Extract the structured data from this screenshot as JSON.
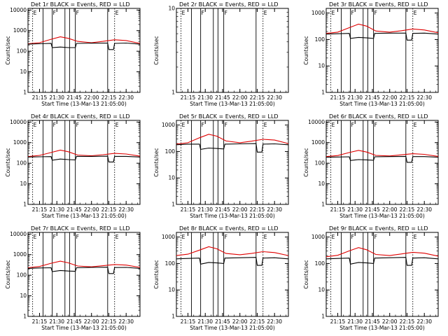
{
  "figure": {
    "ylabel": "Counts/sec",
    "xlabel": "Start Time (13-Mar-13 21:05:00)"
  },
  "chart_data": [
    {
      "type": "line",
      "title": "Det 1r BLACK = Events, RED = LLD",
      "xticks": [
        "21:15",
        "21:30",
        "21:45",
        "22:00",
        "22:15",
        "22:30"
      ],
      "yticks": [
        "1",
        "10",
        "100",
        "1000",
        "10000"
      ],
      "ylim": [
        1,
        12000
      ],
      "ylog": true,
      "xlim": [
        "21:05",
        "22:42"
      ],
      "markers": [
        {
          "time": "21:09",
          "label": "E"
        },
        {
          "time": "21:18",
          "label": ""
        },
        {
          "time": "21:26",
          "label": "F"
        },
        {
          "time": "21:37",
          "label": ""
        },
        {
          "time": "21:41",
          "label": ""
        },
        {
          "time": "21:46",
          "label": "F"
        },
        {
          "time": "22:14",
          "label": ""
        },
        {
          "time": "22:20",
          "label": "E"
        }
      ],
      "series": [
        {
          "name": "RED = LLD",
          "color": "#e00000",
          "x": [
            "21:05",
            "21:15",
            "21:25",
            "21:33",
            "21:40",
            "21:48",
            "22:00",
            "22:10",
            "22:20",
            "22:30",
            "22:42"
          ],
          "y": [
            230,
            260,
            380,
            500,
            420,
            300,
            260,
            300,
            360,
            330,
            240
          ]
        },
        {
          "name": "BLACK = Events",
          "color": "#000000",
          "x": [
            "21:05",
            "21:15",
            "21:25",
            "21:26",
            "21:33",
            "21:40",
            "21:46",
            "21:47",
            "22:00",
            "22:14",
            "22:15",
            "22:19",
            "22:20",
            "22:30",
            "22:42"
          ],
          "y": [
            220,
            230,
            240,
            150,
            160,
            150,
            150,
            240,
            245,
            250,
            120,
            120,
            240,
            250,
            220
          ]
        }
      ]
    },
    {
      "type": "line",
      "title": "Det 2r BLACK = Events, RED = LLD",
      "xticks": [
        "21:15",
        "21:30",
        "21:45",
        "22:00",
        "22:15",
        "22:30"
      ],
      "yticks": [
        "1",
        "10"
      ],
      "ylim": [
        1,
        10
      ],
      "ylog": true,
      "xlim": [
        "21:05",
        "22:42"
      ],
      "markers": [
        {
          "time": "21:09",
          "label": "E"
        },
        {
          "time": "21:18",
          "label": ""
        },
        {
          "time": "21:26",
          "label": "F"
        },
        {
          "time": "21:37",
          "label": ""
        },
        {
          "time": "21:41",
          "label": ""
        },
        {
          "time": "21:46",
          "label": "F"
        },
        {
          "time": "22:14",
          "label": ""
        },
        {
          "time": "22:20",
          "label": "E"
        }
      ],
      "series": []
    },
    {
      "type": "line",
      "title": "Det 3r BLACK = Events, RED = LLD",
      "xticks": [
        "21:15",
        "21:30",
        "21:45",
        "22:00",
        "22:15",
        "22:30"
      ],
      "yticks": [
        "1",
        "10",
        "100",
        "1000"
      ],
      "ylim": [
        1,
        1500
      ],
      "ylog": true,
      "xlim": [
        "21:05",
        "22:42"
      ],
      "markers": [
        {
          "time": "21:09",
          "label": "E"
        },
        {
          "time": "21:18",
          "label": ""
        },
        {
          "time": "21:26",
          "label": "F"
        },
        {
          "time": "21:37",
          "label": ""
        },
        {
          "time": "21:41",
          "label": ""
        },
        {
          "time": "21:46",
          "label": "F"
        },
        {
          "time": "22:14",
          "label": ""
        },
        {
          "time": "22:20",
          "label": "E"
        }
      ],
      "series": [
        {
          "name": "RED = LLD",
          "color": "#e00000",
          "x": [
            "21:05",
            "21:15",
            "21:25",
            "21:33",
            "21:40",
            "21:48",
            "22:00",
            "22:10",
            "22:20",
            "22:30",
            "22:42"
          ],
          "y": [
            170,
            190,
            280,
            380,
            320,
            210,
            190,
            215,
            250,
            230,
            180
          ]
        },
        {
          "name": "BLACK = Events",
          "color": "#000000",
          "x": [
            "21:05",
            "21:15",
            "21:25",
            "21:26",
            "21:33",
            "21:40",
            "21:46",
            "21:47",
            "22:00",
            "22:14",
            "22:15",
            "22:19",
            "22:20",
            "22:30",
            "22:42"
          ],
          "y": [
            160,
            165,
            170,
            110,
            120,
            115,
            110,
            170,
            175,
            175,
            95,
            95,
            170,
            175,
            160
          ]
        }
      ]
    },
    {
      "type": "line",
      "title": "Det 4r BLACK = Events, RED = LLD",
      "xticks": [
        "21:15",
        "21:30",
        "21:45",
        "22:00",
        "22:15",
        "22:30"
      ],
      "yticks": [
        "1",
        "10",
        "100",
        "1000",
        "10000"
      ],
      "ylim": [
        1,
        12000
      ],
      "ylog": true,
      "xlim": [
        "21:05",
        "22:42"
      ],
      "markers": [
        {
          "time": "21:09",
          "label": "E"
        },
        {
          "time": "21:18",
          "label": ""
        },
        {
          "time": "21:26",
          "label": "F"
        },
        {
          "time": "21:37",
          "label": ""
        },
        {
          "time": "21:41",
          "label": ""
        },
        {
          "time": "21:46",
          "label": "F"
        },
        {
          "time": "22:14",
          "label": ""
        },
        {
          "time": "22:20",
          "label": "E"
        }
      ],
      "series": [
        {
          "name": "RED = LLD",
          "color": "#e00000",
          "x": [
            "21:05",
            "21:15",
            "21:25",
            "21:33",
            "21:40",
            "21:48",
            "22:00",
            "22:10",
            "22:20",
            "22:30",
            "22:42"
          ],
          "y": [
            210,
            240,
            330,
            430,
            360,
            250,
            230,
            260,
            300,
            280,
            220
          ]
        },
        {
          "name": "BLACK = Events",
          "color": "#000000",
          "x": [
            "21:05",
            "21:15",
            "21:25",
            "21:26",
            "21:33",
            "21:40",
            "21:46",
            "21:47",
            "22:00",
            "22:14",
            "22:15",
            "22:19",
            "22:20",
            "22:30",
            "22:42"
          ],
          "y": [
            200,
            205,
            210,
            140,
            160,
            150,
            145,
            215,
            215,
            220,
            115,
            115,
            215,
            215,
            200
          ]
        }
      ]
    },
    {
      "type": "line",
      "title": "Det 5r BLACK = Events, RED = LLD",
      "xticks": [
        "21:15",
        "21:30",
        "21:45",
        "22:00",
        "22:15",
        "22:30"
      ],
      "yticks": [
        "1",
        "10",
        "100",
        "1000"
      ],
      "ylim": [
        1,
        1500
      ],
      "ylog": true,
      "xlim": [
        "21:05",
        "22:42"
      ],
      "markers": [
        {
          "time": "21:09",
          "label": "E"
        },
        {
          "time": "21:18",
          "label": ""
        },
        {
          "time": "21:26",
          "label": "F"
        },
        {
          "time": "21:37",
          "label": ""
        },
        {
          "time": "21:41",
          "label": ""
        },
        {
          "time": "21:46",
          "label": "F"
        },
        {
          "time": "22:14",
          "label": ""
        },
        {
          "time": "22:20",
          "label": "E"
        }
      ],
      "series": [
        {
          "name": "RED = LLD",
          "color": "#e00000",
          "x": [
            "21:05",
            "21:15",
            "21:25",
            "21:33",
            "21:40",
            "21:48",
            "22:00",
            "22:10",
            "22:20",
            "22:30",
            "22:42"
          ],
          "y": [
            190,
            215,
            330,
            450,
            380,
            250,
            215,
            245,
            290,
            270,
            200
          ]
        },
        {
          "name": "BLACK = Events",
          "color": "#000000",
          "x": [
            "21:05",
            "21:15",
            "21:25",
            "21:26",
            "21:33",
            "21:40",
            "21:46",
            "21:47",
            "22:00",
            "22:14",
            "22:15",
            "22:19",
            "22:20",
            "22:30",
            "22:42"
          ],
          "y": [
            180,
            190,
            190,
            120,
            135,
            130,
            125,
            190,
            195,
            200,
            95,
            95,
            190,
            195,
            180
          ]
        }
      ]
    },
    {
      "type": "line",
      "title": "Det 6r BLACK = Events, RED = LLD",
      "xticks": [
        "21:15",
        "21:30",
        "21:45",
        "22:00",
        "22:15",
        "22:30"
      ],
      "yticks": [
        "1",
        "10",
        "100",
        "1000",
        "10000"
      ],
      "ylim": [
        1,
        12000
      ],
      "ylog": true,
      "xlim": [
        "21:05",
        "22:42"
      ],
      "markers": [
        {
          "time": "21:09",
          "label": "E"
        },
        {
          "time": "21:18",
          "label": ""
        },
        {
          "time": "21:26",
          "label": "F"
        },
        {
          "time": "21:37",
          "label": ""
        },
        {
          "time": "21:41",
          "label": ""
        },
        {
          "time": "21:46",
          "label": "F"
        },
        {
          "time": "22:14",
          "label": ""
        },
        {
          "time": "22:20",
          "label": "E"
        }
      ],
      "series": [
        {
          "name": "RED = LLD",
          "color": "#e00000",
          "x": [
            "21:05",
            "21:15",
            "21:25",
            "21:33",
            "21:40",
            "21:48",
            "22:00",
            "22:10",
            "22:20",
            "22:30",
            "22:42"
          ],
          "y": [
            210,
            235,
            330,
            420,
            350,
            240,
            225,
            255,
            290,
            270,
            215
          ]
        },
        {
          "name": "BLACK = Events",
          "color": "#000000",
          "x": [
            "21:05",
            "21:15",
            "21:25",
            "21:26",
            "21:33",
            "21:40",
            "21:46",
            "21:47",
            "22:00",
            "22:14",
            "22:15",
            "22:19",
            "22:20",
            "22:30",
            "22:42"
          ],
          "y": [
            195,
            200,
            205,
            135,
            150,
            145,
            140,
            205,
            210,
            215,
            110,
            110,
            210,
            210,
            195
          ]
        }
      ]
    },
    {
      "type": "line",
      "title": "Det 7r BLACK = Events, RED = LLD",
      "xticks": [
        "21:15",
        "21:30",
        "21:45",
        "22:00",
        "22:15",
        "22:30"
      ],
      "yticks": [
        "1",
        "10",
        "100",
        "1000",
        "10000"
      ],
      "ylim": [
        1,
        12000
      ],
      "ylog": true,
      "xlim": [
        "21:05",
        "22:42"
      ],
      "markers": [
        {
          "time": "21:09",
          "label": "E"
        },
        {
          "time": "21:18",
          "label": ""
        },
        {
          "time": "21:26",
          "label": "F"
        },
        {
          "time": "21:37",
          "label": ""
        },
        {
          "time": "21:41",
          "label": ""
        },
        {
          "time": "21:46",
          "label": "F"
        },
        {
          "time": "22:14",
          "label": ""
        },
        {
          "time": "22:20",
          "label": "E"
        }
      ],
      "series": [
        {
          "name": "RED = LLD",
          "color": "#e00000",
          "x": [
            "21:05",
            "21:15",
            "21:25",
            "21:33",
            "21:40",
            "21:48",
            "22:00",
            "22:10",
            "22:20",
            "22:30",
            "22:42"
          ],
          "y": [
            230,
            265,
            380,
            480,
            400,
            280,
            255,
            290,
            330,
            310,
            240
          ]
        },
        {
          "name": "BLACK = Events",
          "color": "#000000",
          "x": [
            "21:05",
            "21:15",
            "21:25",
            "21:26",
            "21:33",
            "21:40",
            "21:46",
            "21:47",
            "22:00",
            "22:14",
            "22:15",
            "22:19",
            "22:20",
            "22:30",
            "22:42"
          ],
          "y": [
            215,
            225,
            230,
            150,
            170,
            160,
            155,
            230,
            240,
            245,
            120,
            120,
            235,
            240,
            215
          ]
        }
      ]
    },
    {
      "type": "line",
      "title": "Det 8r BLACK = Events, RED = LLD",
      "xticks": [
        "21:15",
        "21:30",
        "21:45",
        "22:00",
        "22:15",
        "22:30"
      ],
      "yticks": [
        "1",
        "10",
        "100",
        "1000"
      ],
      "ylim": [
        1,
        1500
      ],
      "ylog": true,
      "xlim": [
        "21:05",
        "22:42"
      ],
      "markers": [
        {
          "time": "21:09",
          "label": "E"
        },
        {
          "time": "21:18",
          "label": ""
        },
        {
          "time": "21:26",
          "label": "F"
        },
        {
          "time": "21:37",
          "label": ""
        },
        {
          "time": "21:41",
          "label": ""
        },
        {
          "time": "21:46",
          "label": "F"
        },
        {
          "time": "22:14",
          "label": ""
        },
        {
          "time": "22:20",
          "label": "E"
        }
      ],
      "series": [
        {
          "name": "RED = LLD",
          "color": "#e00000",
          "x": [
            "21:05",
            "21:15",
            "21:25",
            "21:33",
            "21:40",
            "21:48",
            "22:00",
            "22:10",
            "22:20",
            "22:30",
            "22:42"
          ],
          "y": [
            200,
            225,
            320,
            430,
            360,
            240,
            215,
            240,
            280,
            260,
            200
          ]
        },
        {
          "name": "BLACK = Events",
          "color": "#000000",
          "x": [
            "21:05",
            "21:15",
            "21:25",
            "21:26",
            "21:33",
            "21:40",
            "21:46",
            "21:47",
            "22:00",
            "22:14",
            "22:15",
            "22:19",
            "22:20",
            "22:30",
            "22:42"
          ],
          "y": [
            150,
            155,
            160,
            95,
            110,
            105,
            100,
            160,
            165,
            170,
            85,
            85,
            160,
            165,
            150
          ]
        }
      ]
    },
    {
      "type": "line",
      "title": "Det 9r BLACK = Events, RED = LLD",
      "xticks": [
        "21:15",
        "21:30",
        "21:45",
        "22:00",
        "22:15",
        "22:30"
      ],
      "yticks": [
        "1",
        "10",
        "100",
        "1000"
      ],
      "ylim": [
        1,
        1500
      ],
      "ylog": true,
      "xlim": [
        "21:05",
        "22:42"
      ],
      "markers": [
        {
          "time": "21:09",
          "label": "E"
        },
        {
          "time": "21:18",
          "label": ""
        },
        {
          "time": "21:26",
          "label": "F"
        },
        {
          "time": "21:37",
          "label": ""
        },
        {
          "time": "21:41",
          "label": ""
        },
        {
          "time": "21:46",
          "label": "F"
        },
        {
          "time": "22:14",
          "label": ""
        },
        {
          "time": "22:20",
          "label": "E"
        }
      ],
      "series": [
        {
          "name": "RED = LLD",
          "color": "#e00000",
          "x": [
            "21:05",
            "21:15",
            "21:25",
            "21:33",
            "21:40",
            "21:48",
            "22:00",
            "22:10",
            "22:20",
            "22:30",
            "22:42"
          ],
          "y": [
            180,
            205,
            300,
            400,
            330,
            220,
            200,
            230,
            265,
            245,
            190
          ]
        },
        {
          "name": "BLACK = Events",
          "color": "#000000",
          "x": [
            "21:05",
            "21:15",
            "21:25",
            "21:26",
            "21:33",
            "21:40",
            "21:46",
            "21:47",
            "22:00",
            "22:14",
            "22:15",
            "22:19",
            "22:20",
            "22:30",
            "22:42"
          ],
          "y": [
            150,
            155,
            160,
            95,
            110,
            105,
            100,
            160,
            165,
            170,
            85,
            85,
            160,
            165,
            150
          ]
        }
      ]
    }
  ]
}
